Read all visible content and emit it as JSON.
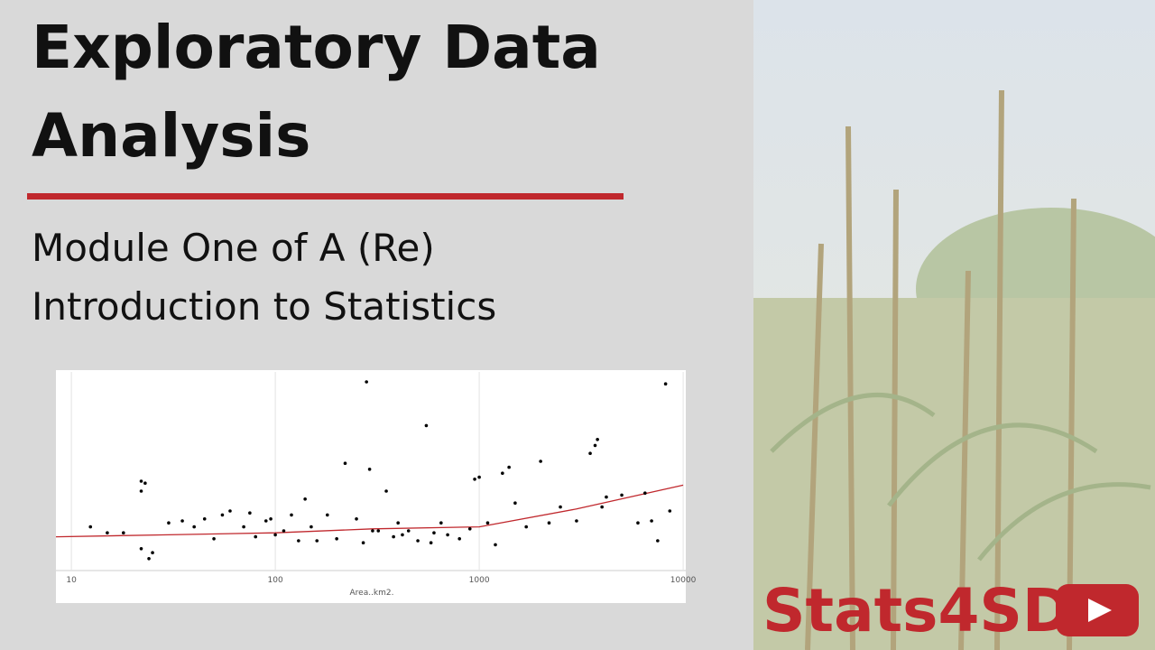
{
  "slide": {
    "title_lines": [
      "Exploratory Data",
      "Analysis"
    ],
    "subtitle_lines": [
      "Module One of A (Re)",
      "Introduction to Statistics"
    ],
    "brand": "Stats4SD"
  },
  "chart_data": {
    "type": "scatter",
    "x_label": "Area..km2.",
    "x_log": true,
    "xlim": [
      8.4,
      10300
    ],
    "xticks": [
      10,
      100,
      1000,
      10000
    ],
    "ylim": [
      0,
      100
    ],
    "grid": true,
    "color": "#000000",
    "x": [
      12.4,
      15,
      18,
      22,
      22,
      23,
      22,
      24,
      25,
      30,
      35,
      40,
      45,
      50,
      55,
      60,
      70,
      75,
      80,
      90,
      95,
      100,
      110,
      120,
      130,
      140,
      150,
      160,
      180,
      200,
      220,
      250,
      270,
      280,
      290,
      300,
      320,
      350,
      380,
      400,
      420,
      450,
      500,
      550,
      580,
      600,
      650,
      700,
      800,
      900,
      950,
      1000,
      1100,
      1200,
      1300,
      1400,
      1500,
      1700,
      2000,
      2200,
      2500,
      3000,
      3500,
      3700,
      3800,
      4000,
      4200,
      5000,
      6000,
      6500,
      7000,
      7500,
      8200,
      8600
    ],
    "values": [
      22,
      19,
      19,
      40,
      45,
      44,
      11,
      6,
      9,
      24,
      25,
      22,
      26,
      16,
      28,
      30,
      22,
      29,
      17,
      25,
      26,
      18,
      20,
      28,
      15,
      36,
      22,
      15,
      28,
      16,
      54,
      26,
      14,
      95,
      51,
      20,
      20,
      40,
      17,
      24,
      18,
      20,
      15,
      73,
      14,
      19,
      24,
      18,
      16,
      21,
      46,
      47,
      24,
      13,
      49,
      52,
      34,
      22,
      55,
      24,
      32,
      25,
      59,
      63,
      66,
      32,
      37,
      38,
      24,
      39,
      25,
      15,
      94,
      30
    ],
    "trend": {
      "color": "#c0282d",
      "x": [
        8.4,
        30,
        100,
        300,
        1000,
        3000,
        10000
      ],
      "values": [
        17,
        18,
        19,
        21,
        22,
        31,
        43
      ]
    }
  }
}
